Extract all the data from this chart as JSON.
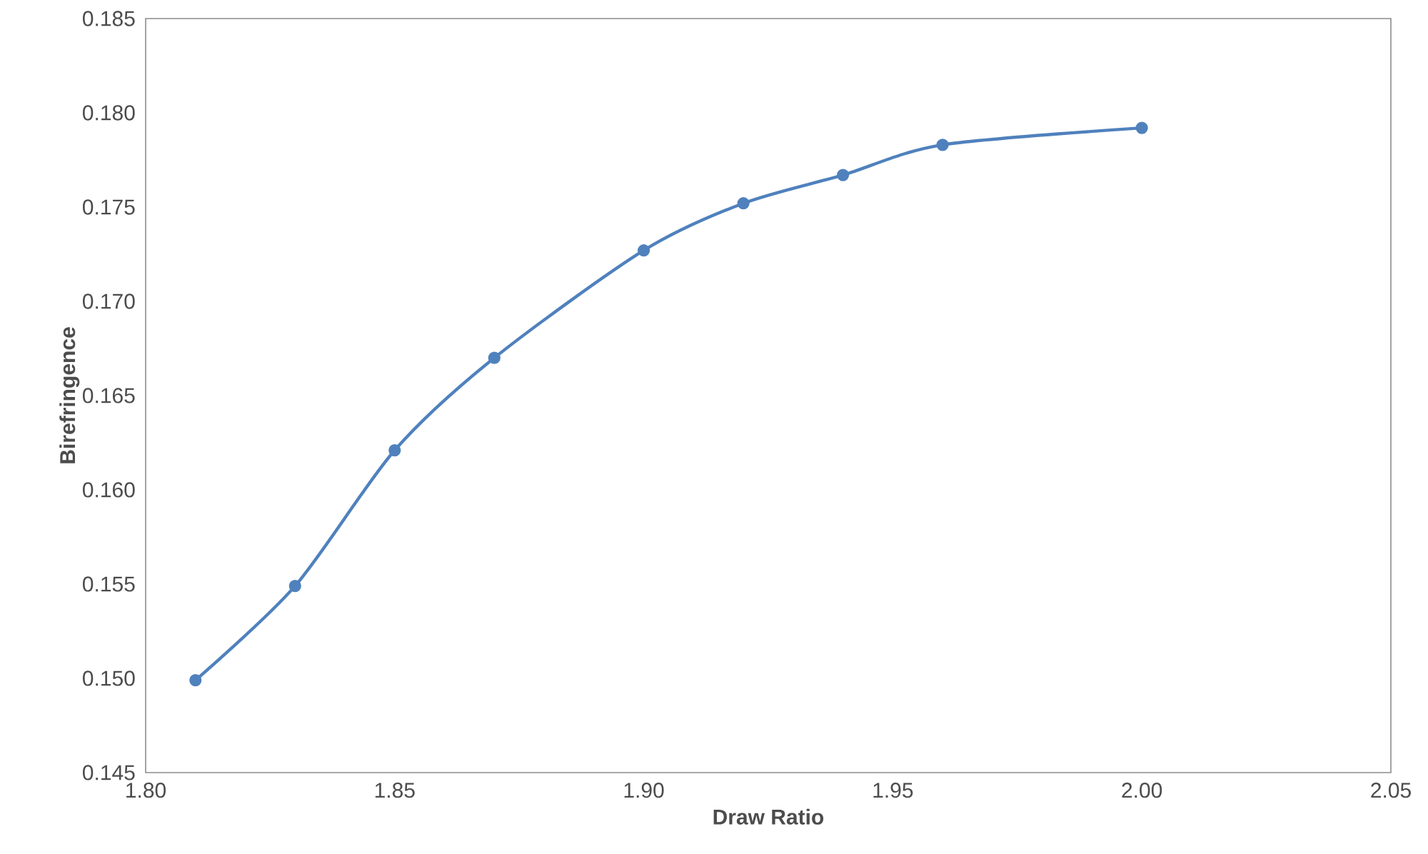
{
  "chart_data": {
    "type": "line",
    "xlabel": "Draw Ratio",
    "ylabel": "Birefringence",
    "x": [
      1.81,
      1.83,
      1.85,
      1.87,
      1.9,
      1.92,
      1.94,
      1.96,
      2.0
    ],
    "series": [
      {
        "color": "#4f81bd",
        "values": [
          0.1499,
          0.1549,
          0.1621,
          0.167,
          0.1727,
          0.1752,
          0.1767,
          0.1783,
          0.1792
        ]
      }
    ],
    "xlim": [
      1.8,
      2.05
    ],
    "xticks": [
      {
        "value": 1.8,
        "label": "1.80"
      },
      {
        "value": 1.85,
        "label": "1.85"
      },
      {
        "value": 1.9,
        "label": "1.90"
      },
      {
        "value": 1.95,
        "label": "1.95"
      },
      {
        "value": 2.0,
        "label": "2.00"
      },
      {
        "value": 2.05,
        "label": "2.05"
      }
    ],
    "ylim": [
      0.145,
      0.185
    ],
    "yticks": [
      0.145,
      {
        "value": 0.15,
        "label": "0.150"
      },
      0.155,
      {
        "value": 0.16,
        "label": "0.160"
      },
      0.165,
      {
        "value": 0.17,
        "label": "0.170"
      },
      0.175,
      {
        "value": 0.18,
        "label": "0.180"
      },
      0.185
    ],
    "grid": false,
    "marker": "circle",
    "line_style": "solid"
  }
}
